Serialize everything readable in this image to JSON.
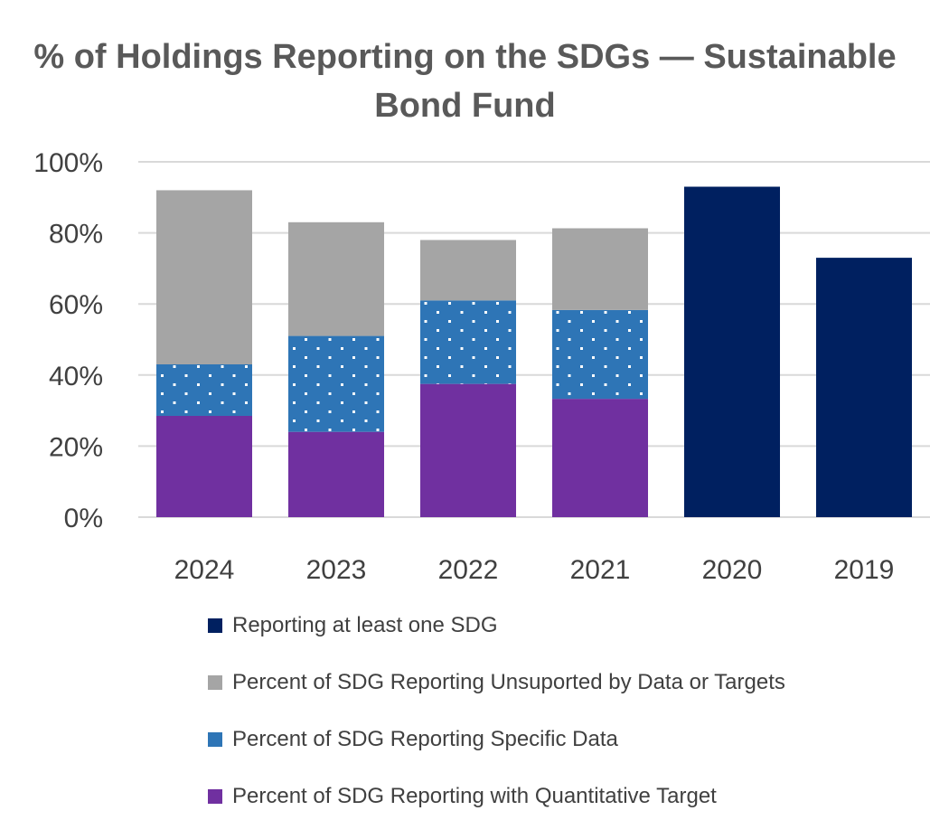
{
  "chart_data": {
    "type": "bar",
    "stacked": true,
    "title": "% of Holdings Reporting on the SDGs — Sustainable Bond Fund",
    "categories": [
      "2024",
      "2023",
      "2022",
      "2021",
      "2020",
      "2019"
    ],
    "ylim": [
      0,
      100
    ],
    "yticks": [
      0,
      20,
      40,
      60,
      80,
      100
    ],
    "ytick_labels": [
      "0%",
      "20%",
      "40%",
      "60%",
      "80%",
      "100%"
    ],
    "xlabel": "",
    "ylabel": "",
    "grid": true,
    "legend_position": "bottom",
    "series": [
      {
        "name": "Reporting at least one SDG",
        "color": "#002060",
        "pattern": "solid",
        "values": [
          null,
          null,
          null,
          null,
          93,
          73
        ]
      },
      {
        "name": "Percent of SDG Reporting Unsuported by Data or Targets",
        "color": "#a5a5a5",
        "pattern": "solid",
        "values": [
          49,
          32,
          17,
          23,
          null,
          null
        ]
      },
      {
        "name": "Percent of SDG Reporting Specific Data",
        "color": "#2e75b6",
        "pattern": "dots",
        "values": [
          14.5,
          27,
          23.5,
          25,
          null,
          null
        ]
      },
      {
        "name": "Percent of SDG Reporting with Quantitative Target",
        "color": "#7030a0",
        "pattern": "solid",
        "values": [
          28.5,
          24,
          37.5,
          33.3,
          null,
          null
        ]
      }
    ],
    "stack_order": [
      3,
      2,
      1,
      0
    ]
  }
}
